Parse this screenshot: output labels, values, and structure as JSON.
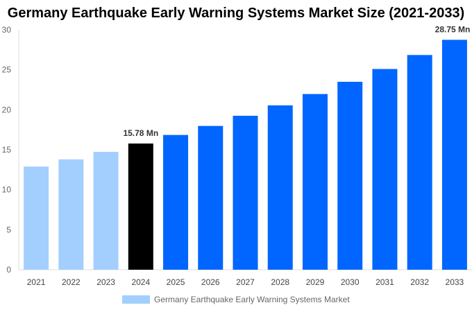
{
  "chart_data": {
    "type": "bar",
    "title": "Germany Earthquake Early Warning Systems Market Size (2021-2033)",
    "categories": [
      "2021",
      "2022",
      "2023",
      "2024",
      "2025",
      "2026",
      "2027",
      "2028",
      "2029",
      "2030",
      "2031",
      "2032",
      "2033"
    ],
    "values": [
      12.9,
      13.8,
      14.74,
      15.78,
      16.85,
      17.98,
      19.25,
      20.55,
      21.97,
      23.5,
      25.1,
      26.85,
      28.75
    ],
    "bar_colors": [
      "#a3cfff",
      "#a3cfff",
      "#a3cfff",
      "#000000",
      "#0066ff",
      "#0066ff",
      "#0066ff",
      "#0066ff",
      "#0066ff",
      "#0066ff",
      "#0066ff",
      "#0066ff",
      "#0066ff"
    ],
    "data_labels": {
      "2024": "15.78 Mn",
      "2033": "28.75 Mn"
    },
    "ylim": [
      0,
      30
    ],
    "yticks": [
      0,
      5,
      10,
      15,
      20,
      25,
      30
    ],
    "grid": false,
    "legend": {
      "position": "bottom",
      "entries": [
        "Germany Earthquake Early Warning Systems Market"
      ],
      "color": "#a3cfff"
    }
  }
}
